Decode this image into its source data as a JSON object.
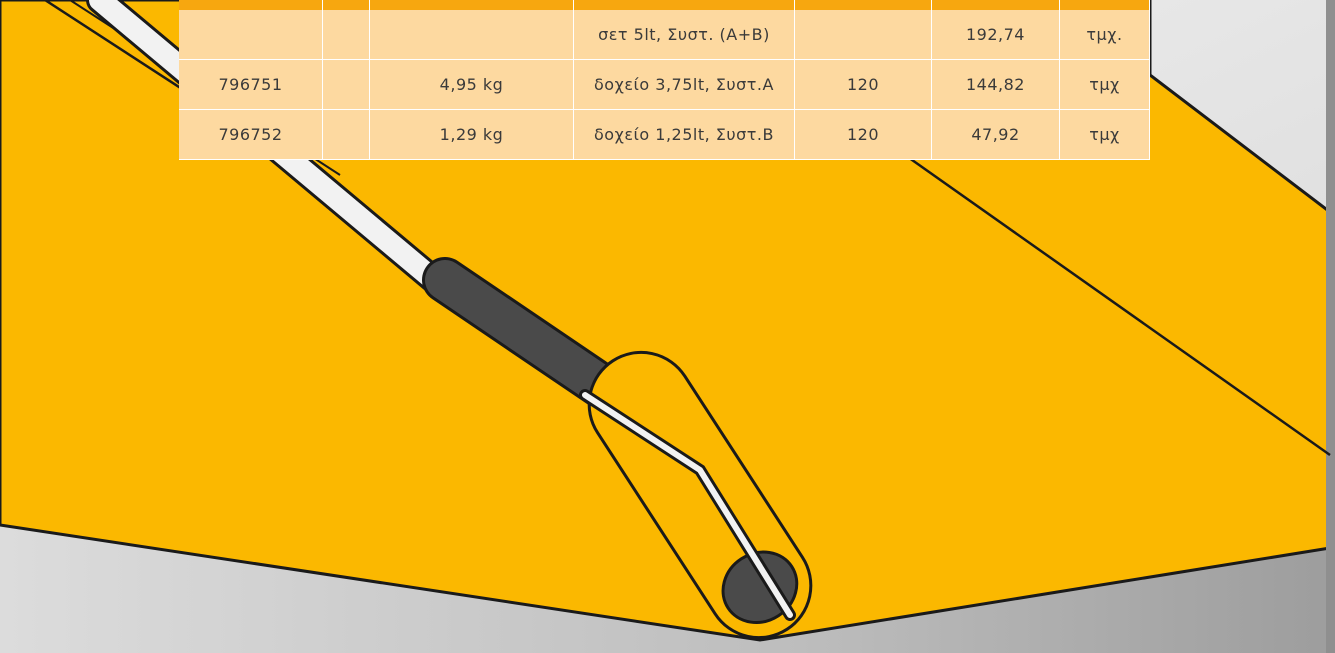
{
  "table": {
    "rows": [
      [
        null,
        null,
        null,
        "σετ 5lt, Συστ. (A+B)",
        null,
        "192,74",
        "τμχ."
      ],
      [
        "796751",
        null,
        "4,95 kg",
        "δοχείο 3,75lt, Συστ.A",
        "120",
        "144,82",
        "τμχ"
      ],
      [
        "796752",
        null,
        "1,29 kg",
        "δοχείο 1,25lt, Συστ.B",
        "120",
        "47,92",
        "τμχ"
      ]
    ]
  }
}
